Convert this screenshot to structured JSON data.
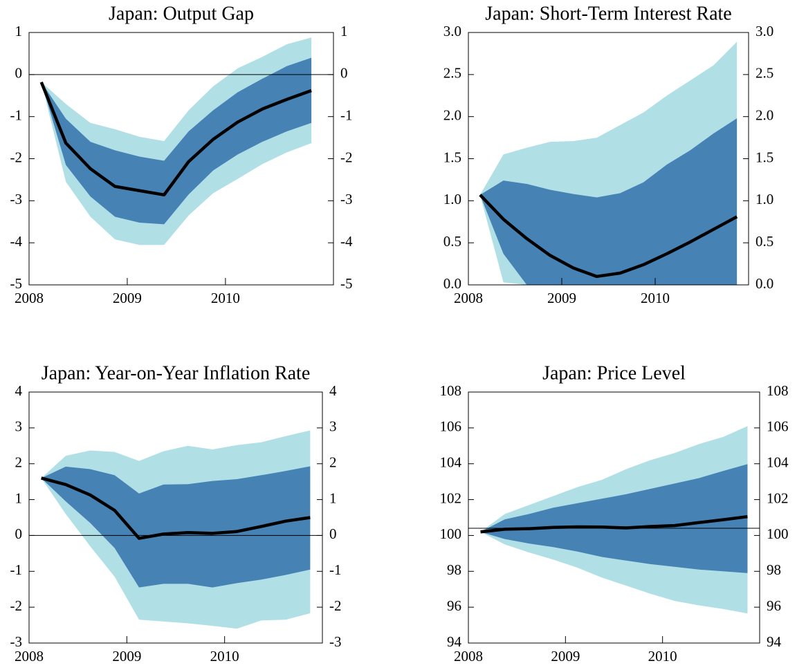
{
  "chart_data": [
    {
      "type": "fan",
      "title": "Japan: Output Gap",
      "x": [
        2008.125,
        2008.375,
        2008.625,
        2008.875,
        2009.125,
        2009.375,
        2009.625,
        2009.875,
        2010.125,
        2010.375,
        2010.625,
        2010.875
      ],
      "xlim": [
        2008,
        2011.1
      ],
      "xticks": [
        2008,
        2009,
        2010
      ],
      "ylim": [
        -5,
        1
      ],
      "yticks": [
        -5,
        -4,
        -3,
        -2,
        -1,
        0,
        1
      ],
      "reference_line": 0,
      "bands": [
        {
          "color": "#b0e0e6",
          "lower": [
            -0.18,
            -2.55,
            -3.38,
            -3.92,
            -4.05,
            -4.05,
            -3.35,
            -2.82,
            -2.48,
            -2.13,
            -1.85,
            -1.63
          ],
          "upper": [
            -0.18,
            -0.7,
            -1.15,
            -1.3,
            -1.48,
            -1.58,
            -0.85,
            -0.28,
            0.15,
            0.42,
            0.72,
            0.88
          ]
        },
        {
          "color": "#4682b4",
          "lower": [
            -0.18,
            -2.15,
            -2.9,
            -3.38,
            -3.52,
            -3.56,
            -2.85,
            -2.28,
            -1.9,
            -1.6,
            -1.35,
            -1.15
          ],
          "upper": [
            -0.18,
            -1.05,
            -1.6,
            -1.8,
            -1.95,
            -2.05,
            -1.35,
            -0.85,
            -0.42,
            -0.1,
            0.2,
            0.4
          ]
        }
      ],
      "series": [
        {
          "color": "#000000",
          "values": [
            -0.18,
            -1.63,
            -2.24,
            -2.66,
            -2.76,
            -2.86,
            -2.07,
            -1.54,
            -1.13,
            -0.82,
            -0.59,
            -0.38
          ]
        }
      ]
    },
    {
      "type": "fan",
      "title": "Japan: Short-Term Interest Rate",
      "x": [
        2008.125,
        2008.375,
        2008.625,
        2008.875,
        2009.125,
        2009.375,
        2009.625,
        2009.875,
        2010.125,
        2010.375,
        2010.625,
        2010.875
      ],
      "xlim": [
        2008,
        2011
      ],
      "xticks": [
        2008,
        2009,
        2010
      ],
      "ylim": [
        0,
        3
      ],
      "yticks": [
        {
          "value": 0,
          "label": "0.0"
        },
        0.5,
        {
          "value": 1,
          "label": "1.0"
        },
        1.5,
        {
          "value": 2,
          "label": "2.0"
        },
        2.5,
        {
          "value": 3,
          "label": "3.0"
        }
      ],
      "bands": [
        {
          "color": "#b0e0e6",
          "lower": [
            1.07,
            0.03,
            0,
            0,
            0,
            0,
            0,
            0,
            0,
            0,
            0,
            0
          ],
          "upper": [
            1.07,
            1.55,
            1.63,
            1.7,
            1.71,
            1.75,
            1.9,
            2.05,
            2.25,
            2.43,
            2.61,
            2.89
          ]
        },
        {
          "color": "#4682b4",
          "lower": [
            1.07,
            0.37,
            0,
            0,
            0,
            0,
            0,
            0,
            0,
            0,
            0,
            0
          ],
          "upper": [
            1.07,
            1.24,
            1.2,
            1.13,
            1.08,
            1.04,
            1.09,
            1.22,
            1.43,
            1.6,
            1.8,
            1.98
          ]
        }
      ],
      "series": [
        {
          "color": "#000000",
          "values": [
            1.07,
            0.78,
            0.55,
            0.35,
            0.2,
            0.1,
            0.14,
            0.24,
            0.37,
            0.51,
            0.66,
            0.81
          ]
        }
      ]
    },
    {
      "type": "fan",
      "title": "Japan: Year-on-Year Inflation Rate",
      "x": [
        2008.125,
        2008.375,
        2008.625,
        2008.875,
        2009.125,
        2009.375,
        2009.625,
        2009.875,
        2010.125,
        2010.375,
        2010.625,
        2010.875
      ],
      "xlim": [
        2008,
        2011
      ],
      "xticks": [
        2008,
        2009,
        2010
      ],
      "ylim": [
        -3,
        4
      ],
      "yticks": [
        -3,
        -2,
        -1,
        0,
        1,
        2,
        3,
        4
      ],
      "reference_line": 0,
      "bands": [
        {
          "color": "#b0e0e6",
          "lower": [
            1.6,
            0.6,
            -0.3,
            -1.15,
            -2.35,
            -2.4,
            -2.45,
            -2.52,
            -2.6,
            -2.37,
            -2.35,
            -2.17
          ],
          "upper": [
            1.6,
            2.22,
            2.37,
            2.33,
            2.08,
            2.35,
            2.5,
            2.4,
            2.52,
            2.6,
            2.77,
            2.93
          ]
        },
        {
          "color": "#4682b4",
          "lower": [
            1.6,
            0.95,
            0.35,
            -0.35,
            -1.45,
            -1.35,
            -1.35,
            -1.45,
            -1.33,
            -1.23,
            -1.1,
            -0.95
          ],
          "upper": [
            1.6,
            1.92,
            1.85,
            1.68,
            1.17,
            1.42,
            1.43,
            1.52,
            1.57,
            1.68,
            1.8,
            1.93
          ]
        }
      ],
      "series": [
        {
          "color": "#000000",
          "values": [
            1.6,
            1.42,
            1.13,
            0.7,
            -0.08,
            0.04,
            0.08,
            0.06,
            0.11,
            0.25,
            0.4,
            0.5
          ]
        }
      ]
    },
    {
      "type": "fan",
      "title": "Japan: Price Level",
      "x": [
        2008.125,
        2008.375,
        2008.625,
        2008.875,
        2009.125,
        2009.375,
        2009.625,
        2009.875,
        2010.125,
        2010.375,
        2010.625,
        2010.875
      ],
      "xlim": [
        2008,
        2011
      ],
      "xticks": [
        2008,
        2009,
        2010
      ],
      "ylim": [
        94,
        108
      ],
      "yticks": [
        94,
        96,
        98,
        100,
        102,
        104,
        106,
        108
      ],
      "reference_line": 100.4,
      "bands": [
        {
          "color": "#b0e0e6",
          "lower": [
            100.2,
            99.5,
            99.05,
            98.65,
            98.2,
            97.65,
            97.2,
            96.75,
            96.35,
            96.1,
            95.9,
            95.65
          ],
          "upper": [
            100.2,
            101.2,
            101.7,
            102.2,
            102.7,
            103.1,
            103.7,
            104.2,
            104.6,
            105.1,
            105.5,
            106.1
          ]
        },
        {
          "color": "#4682b4",
          "lower": [
            100.2,
            99.8,
            99.55,
            99.35,
            99.1,
            98.8,
            98.6,
            98.4,
            98.25,
            98.1,
            98,
            97.9
          ],
          "upper": [
            100.2,
            100.9,
            101.2,
            101.55,
            101.8,
            102.05,
            102.3,
            102.6,
            102.9,
            103.2,
            103.6,
            103.98
          ]
        }
      ],
      "series": [
        {
          "color": "#000000",
          "values": [
            100.2,
            100.35,
            100.38,
            100.45,
            100.48,
            100.47,
            100.42,
            100.5,
            100.55,
            100.72,
            100.88,
            101.05
          ]
        }
      ]
    }
  ]
}
